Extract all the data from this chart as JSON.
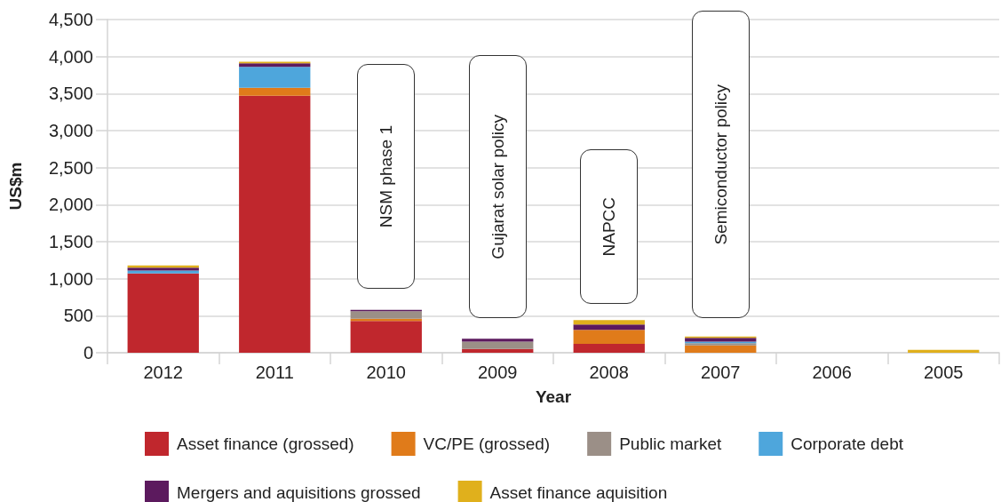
{
  "chart_data": {
    "type": "bar",
    "stacked": true,
    "categories": [
      "2012",
      "2011",
      "2010",
      "2009",
      "2008",
      "2007",
      "2006",
      "2005"
    ],
    "series": [
      {
        "name": "Asset finance (grossed)",
        "color": "#c0272d",
        "values": [
          1070,
          3470,
          430,
          50,
          120,
          null,
          null,
          null
        ]
      },
      {
        "name": "VC/PE (grossed)",
        "color": "#e07b1a",
        "values": [
          null,
          110,
          30,
          null,
          190,
          100,
          null,
          null
        ]
      },
      {
        "name": "Public market",
        "color": "#9b8f87",
        "values": [
          null,
          null,
          100,
          100,
          null,
          30,
          null,
          null
        ]
      },
      {
        "name": "Corporate debt",
        "color": "#4ea6dc",
        "values": [
          40,
          280,
          null,
          null,
          null,
          20,
          null,
          null
        ]
      },
      {
        "name": "Mergers and aquisitions grossed",
        "color": "#5c1a5e",
        "values": [
          40,
          50,
          20,
          40,
          70,
          50,
          null,
          null
        ]
      },
      {
        "name": "Asset finance aquisition",
        "color": "#e0b01c",
        "values": [
          30,
          20,
          null,
          null,
          60,
          20,
          null,
          40
        ]
      }
    ],
    "xlabel": "Year",
    "ylabel": "US$m",
    "ylim": [
      0,
      4500
    ],
    "yticks": [
      0,
      500,
      {
        "value": 1000,
        "label": "1,000"
      },
      {
        "value": 1500,
        "label": "1,500"
      },
      {
        "value": 2000,
        "label": "2,000"
      },
      {
        "value": 2500,
        "label": "2,500"
      },
      {
        "value": 3000,
        "label": "3,000"
      },
      {
        "value": 3500,
        "label": "3,500"
      },
      {
        "value": 4000,
        "label": "4,000"
      },
      {
        "value": 4500,
        "label": "4,500"
      }
    ],
    "grid": "y",
    "legend": "bottom",
    "annotations": [
      "NSM phase 1",
      "Gujarat solar policy",
      "NAPCC",
      "Semiconductor policy"
    ]
  }
}
